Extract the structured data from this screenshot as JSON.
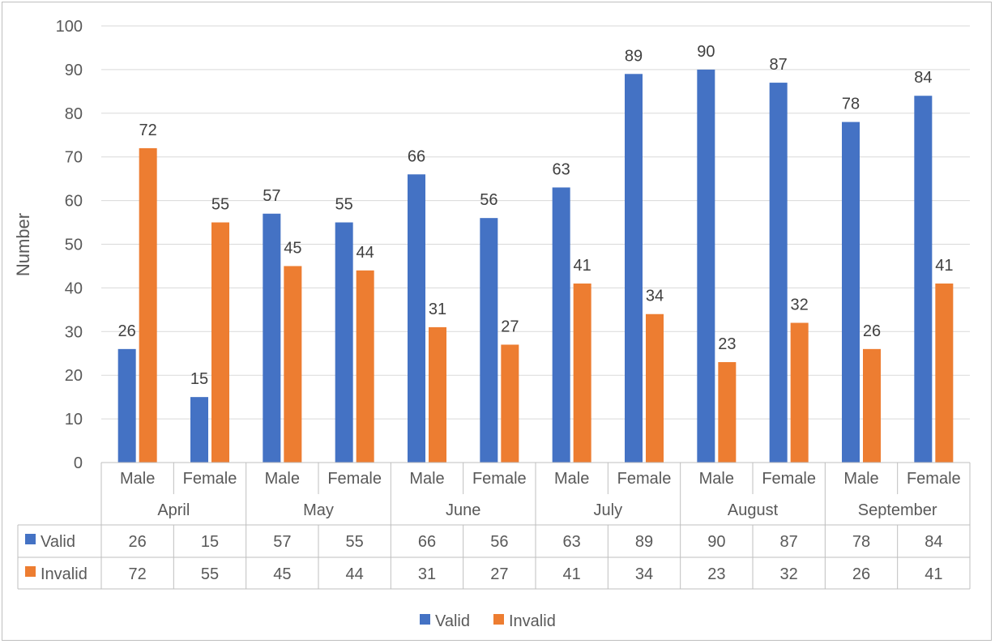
{
  "chart_data": {
    "type": "bar",
    "ylabel": "Number",
    "ylim": [
      0,
      100
    ],
    "y_ticks": [
      0,
      10,
      20,
      30,
      40,
      50,
      60,
      70,
      80,
      90,
      100
    ],
    "grid": true,
    "legend_position": "bottom",
    "months": [
      "April",
      "May",
      "June",
      "July",
      "August",
      "September"
    ],
    "categories": [
      "Male",
      "Female",
      "Male",
      "Female",
      "Male",
      "Female",
      "Male",
      "Female",
      "Male",
      "Female",
      "Male",
      "Female"
    ],
    "series": [
      {
        "name": "Valid",
        "color": "#4472c4",
        "values": [
          26,
          15,
          57,
          55,
          66,
          56,
          63,
          89,
          90,
          87,
          78,
          84
        ]
      },
      {
        "name": "Invalid",
        "color": "#ed7d31",
        "values": [
          72,
          55,
          45,
          44,
          31,
          27,
          41,
          34,
          23,
          32,
          26,
          41
        ]
      }
    ],
    "data_table": true
  }
}
